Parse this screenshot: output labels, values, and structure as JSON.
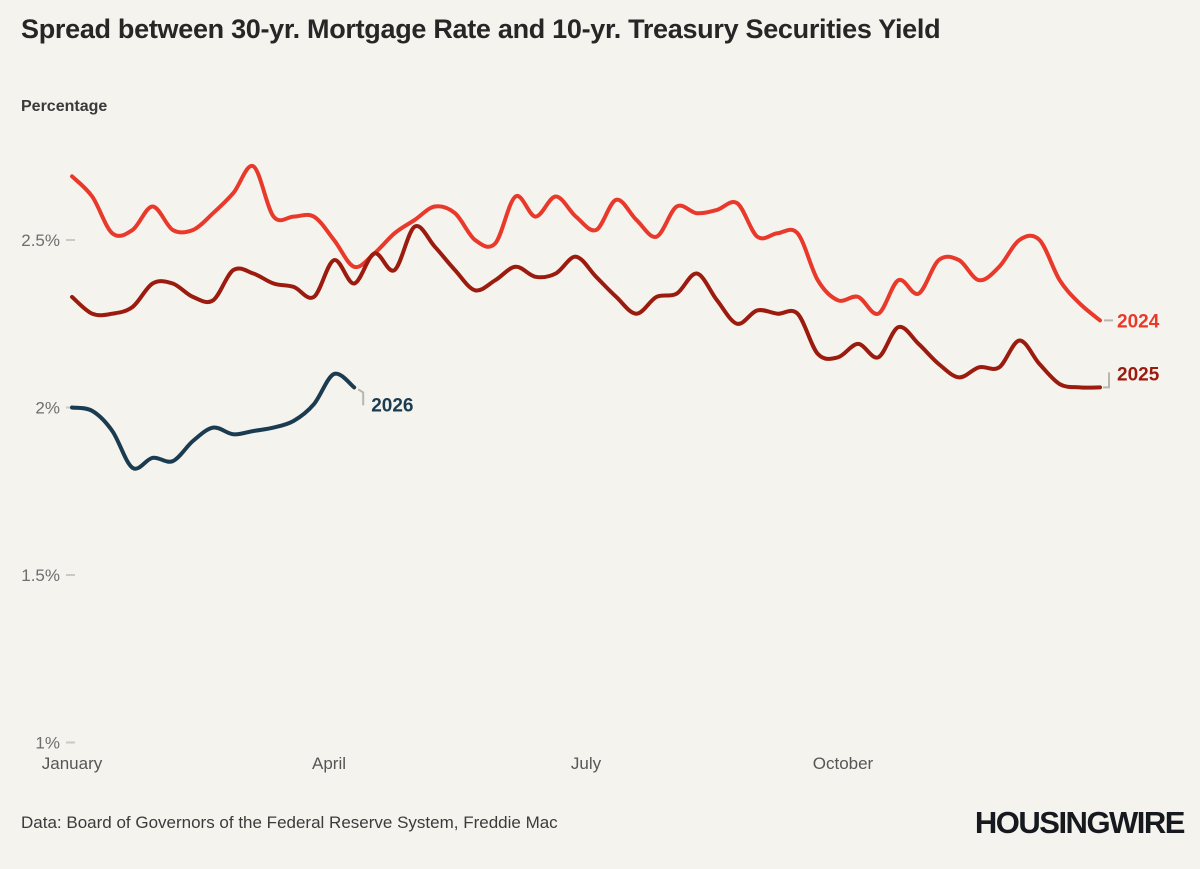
{
  "header": {
    "title": "Spread between 30-yr. Mortgage Rate and 10-yr. Treasury Securities Yield",
    "subtitle": "Percentage"
  },
  "footer": {
    "source": "Data: Board of Governors of the Federal Reserve System, Freddie Mac",
    "logo": "HOUSINGWIRE"
  },
  "colors": {
    "background": "#f5f3ee",
    "title_text": "#262626",
    "axis_text": "#6e6e6e",
    "month_text": "#565656",
    "tick": "#ccc9c1",
    "connector": "#b9b6b0",
    "red_2024": "#e8392b",
    "dark_red_2025": "#9c1b0f",
    "navy_2026": "#1b3c50"
  },
  "chart_data": {
    "type": "line",
    "title": "Spread between 30-yr. Mortgage Rate and 10-yr. Treasury Securities Yield",
    "ylabel": "Percentage",
    "unit": "percent",
    "frequency": "weekly",
    "grid": false,
    "legend_position": "end-of-line-labels",
    "x_tick_labels": [
      "January",
      "April",
      "July",
      "October"
    ],
    "x_tick_months": [
      0,
      3,
      6,
      9
    ],
    "y_ticks": [
      {
        "label": "2.5%",
        "value": 2.5
      },
      {
        "label": "2%",
        "value": 2.0
      },
      {
        "label": "1.5%",
        "value": 1.5
      },
      {
        "label": "1%",
        "value": 1.0
      }
    ],
    "ylim": [
      1.0,
      2.8
    ],
    "series": [
      {
        "name": "2024",
        "color": "#e8392b",
        "values": [
          2.69,
          2.63,
          2.52,
          2.53,
          2.6,
          2.53,
          2.53,
          2.58,
          2.64,
          2.72,
          2.57,
          2.57,
          2.57,
          2.5,
          2.42,
          2.46,
          2.52,
          2.56,
          2.6,
          2.58,
          2.5,
          2.49,
          2.63,
          2.57,
          2.63,
          2.57,
          2.53,
          2.62,
          2.56,
          2.51,
          2.6,
          2.58,
          2.59,
          2.61,
          2.51,
          2.52,
          2.52,
          2.38,
          2.32,
          2.33,
          2.28,
          2.38,
          2.34,
          2.44,
          2.44,
          2.38,
          2.42,
          2.5,
          2.5,
          2.38,
          2.31,
          2.26
        ]
      },
      {
        "name": "2025",
        "color": "#9c1b0f",
        "values": [
          2.33,
          2.28,
          2.28,
          2.3,
          2.37,
          2.37,
          2.33,
          2.32,
          2.41,
          2.4,
          2.37,
          2.36,
          2.33,
          2.44,
          2.37,
          2.46,
          2.41,
          2.54,
          2.48,
          2.41,
          2.35,
          2.38,
          2.42,
          2.39,
          2.4,
          2.45,
          2.39,
          2.33,
          2.28,
          2.33,
          2.34,
          2.4,
          2.32,
          2.25,
          2.29,
          2.28,
          2.28,
          2.16,
          2.15,
          2.19,
          2.15,
          2.24,
          2.19,
          2.13,
          2.09,
          2.12,
          2.12,
          2.2,
          2.13,
          2.07,
          2.06,
          2.06
        ]
      },
      {
        "name": "2026",
        "color": "#1b3c50",
        "values": [
          2.0,
          1.99,
          1.93,
          1.82,
          1.85,
          1.84,
          1.9,
          1.94,
          1.92,
          1.93,
          1.94,
          1.96,
          2.01,
          2.1,
          2.06
        ]
      }
    ]
  }
}
